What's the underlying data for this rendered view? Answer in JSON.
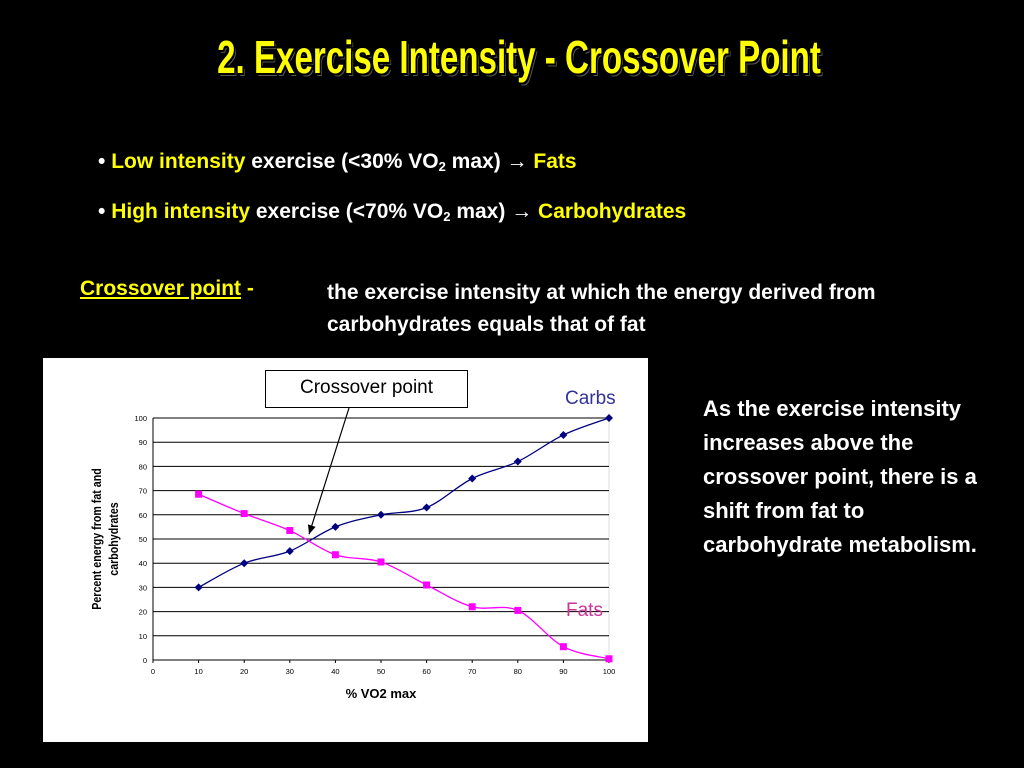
{
  "slide": {
    "title": "2. Exercise Intensity - Crossover Point",
    "bullets": [
      {
        "marker": "•",
        "highlight": "Low intensity",
        "text_before_sub": " exercise (<30% VO",
        "sub": "2",
        "text_after_sub": " max) → ",
        "result": "Fats"
      },
      {
        "marker": "•",
        "highlight": "High intensity",
        "text_before_sub": " exercise (<70% VO",
        "sub": "2",
        "text_after_sub": " max) → ",
        "result": "Carbohydrates"
      }
    ],
    "definition": {
      "term": "Crossover point",
      "separator": " -",
      "text": "the exercise intensity at which the energy derived from carbohydrates equals that of fat"
    },
    "side_text": "As the exercise intensity increases above the crossover point, there is a shift from fat to carbohydrate metabolism.",
    "callout": "Crossover point",
    "colors": {
      "title": "#ffff00",
      "highlight": "#ffff00",
      "carbs": "#000080",
      "fats": "#ff00ff",
      "carbs_label": "#333399",
      "fats_label": "#cc3399"
    }
  },
  "chart_data": {
    "type": "line",
    "title": "",
    "xlabel": "% VO2 max",
    "ylabel": "Percent energy from fat and carbohydrates",
    "xlim": [
      0,
      100
    ],
    "ylim": [
      0,
      100
    ],
    "x_ticks": [
      0,
      10,
      20,
      30,
      40,
      50,
      60,
      70,
      80,
      90,
      100
    ],
    "y_ticks": [
      0,
      10,
      20,
      30,
      40,
      50,
      60,
      70,
      80,
      90,
      100
    ],
    "grid": true,
    "series": [
      {
        "name": "Carbs",
        "marker": "diamond",
        "x": [
          10,
          20,
          30,
          40,
          50,
          60,
          70,
          80,
          90,
          100
        ],
        "values": [
          30,
          40,
          45,
          55,
          60,
          63,
          75,
          82,
          93,
          100
        ]
      },
      {
        "name": "Fats",
        "marker": "square",
        "x": [
          10,
          20,
          30,
          40,
          50,
          60,
          70,
          80,
          90,
          100
        ],
        "values": [
          68.5,
          60.5,
          53.5,
          43.5,
          40.5,
          31,
          22,
          20.5,
          5.5,
          0.5
        ]
      }
    ],
    "annotation": "Crossover point",
    "crossover_x": 34
  }
}
